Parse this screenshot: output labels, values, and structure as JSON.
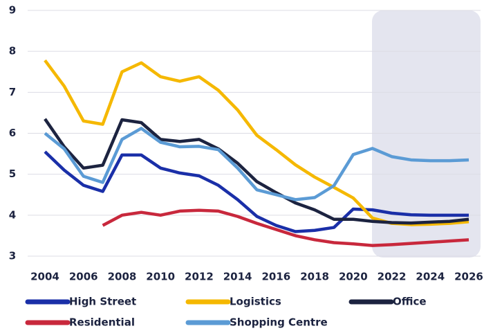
{
  "chart_data": {
    "type": "line",
    "x": [
      2004,
      2005,
      2006,
      2007,
      2008,
      2009,
      2010,
      2011,
      2012,
      2013,
      2014,
      2015,
      2016,
      2017,
      2018,
      2019,
      2020,
      2021,
      2022,
      2023,
      2024,
      2025,
      2026
    ],
    "xlim": [
      2004,
      2026
    ],
    "xticks": [
      2004,
      2006,
      2008,
      2010,
      2012,
      2014,
      2016,
      2018,
      2020,
      2022,
      2024,
      2026
    ],
    "ylim": [
      3,
      9
    ],
    "yticks": [
      3,
      4,
      5,
      6,
      7,
      8,
      9
    ],
    "grid": true,
    "legend": "bottom",
    "series": [
      {
        "name": "High Street",
        "color": "#1a2fa8",
        "values": [
          5.55,
          5.1,
          4.73,
          4.58,
          5.47,
          5.47,
          5.15,
          5.03,
          4.96,
          4.73,
          4.38,
          3.97,
          3.75,
          3.6,
          3.63,
          3.7,
          4.15,
          4.13,
          4.05,
          4.01,
          4.0,
          4.0,
          4.0
        ]
      },
      {
        "name": "Logistics",
        "color": "#f5b800",
        "values": [
          7.78,
          7.15,
          6.3,
          6.22,
          7.5,
          7.72,
          7.38,
          7.27,
          7.38,
          7.05,
          6.57,
          5.95,
          5.6,
          5.23,
          4.93,
          4.68,
          4.42,
          3.93,
          3.8,
          3.77,
          3.78,
          3.8,
          3.84
        ]
      },
      {
        "name": "Office",
        "color": "#1c2340",
        "values": [
          6.35,
          5.67,
          5.15,
          5.22,
          6.33,
          6.26,
          5.85,
          5.8,
          5.85,
          5.62,
          5.27,
          4.82,
          4.55,
          4.3,
          4.13,
          3.9,
          3.9,
          3.85,
          3.82,
          3.81,
          3.83,
          3.85,
          3.9
        ]
      },
      {
        "name": "Residential",
        "color": "#c8283c",
        "values": [
          null,
          null,
          null,
          3.75,
          4.0,
          4.07,
          4.0,
          4.1,
          4.12,
          4.1,
          3.97,
          3.8,
          3.65,
          3.5,
          3.4,
          3.33,
          3.3,
          3.26,
          3.28,
          3.31,
          3.34,
          3.37,
          3.4
        ]
      },
      {
        "name": "Shopping Centre",
        "color": "#5b9bd5",
        "values": [
          6.0,
          5.62,
          4.95,
          4.8,
          5.85,
          6.12,
          5.78,
          5.67,
          5.68,
          5.6,
          5.15,
          4.62,
          4.5,
          4.38,
          4.43,
          4.72,
          5.48,
          5.63,
          5.43,
          5.35,
          5.33,
          5.33,
          5.35
        ]
      }
    ]
  }
}
